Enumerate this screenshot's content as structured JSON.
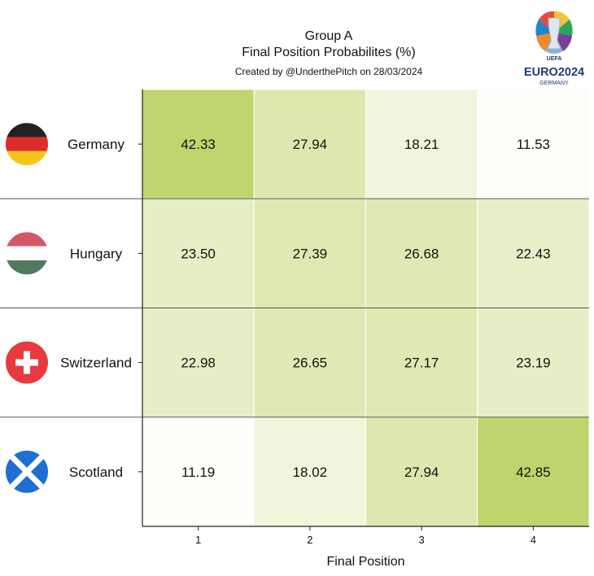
{
  "header": {
    "title_line1": "Group A",
    "title_line2": "Final Position Probabilites (%)",
    "credit": "Created by @UnderthePitch on 28/03/2024"
  },
  "logo": {
    "top_text": "UEFA",
    "main_text": "EURO2024",
    "sub_text": "GERMANY",
    "color": "#1d3b7a"
  },
  "chart_data": {
    "type": "heatmap",
    "title": "Group A\nFinal Position Probabilites (%)",
    "subtitle": "Created by @UnderthePitch on 28/03/2024",
    "xlabel": "Final Position",
    "ylabel": "",
    "x": [
      "1",
      "2",
      "3",
      "4"
    ],
    "y": [
      "Germany",
      "Hungary",
      "Switzerland",
      "Scotland"
    ],
    "z": [
      [
        42.33,
        27.94,
        18.21,
        11.53
      ],
      [
        23.5,
        27.39,
        26.68,
        22.43
      ],
      [
        22.98,
        26.65,
        27.17,
        23.19
      ],
      [
        11.19,
        18.02,
        27.94,
        42.85
      ]
    ],
    "value_labels": [
      [
        "42.33",
        "27.94",
        "18.21",
        "11.53"
      ],
      [
        "23.50",
        "27.39",
        "26.68",
        "22.43"
      ],
      [
        "22.98",
        "26.65",
        "27.17",
        "23.19"
      ],
      [
        "11.19",
        "18.02",
        "27.94",
        "42.85"
      ]
    ],
    "zlim": [
      11.19,
      42.85
    ],
    "colormap": {
      "low": "#fefefb",
      "high": "#bfd46c"
    },
    "flags": [
      "germany-flag",
      "hungary-flag",
      "switzerland-flag",
      "scotland-flag"
    ]
  }
}
